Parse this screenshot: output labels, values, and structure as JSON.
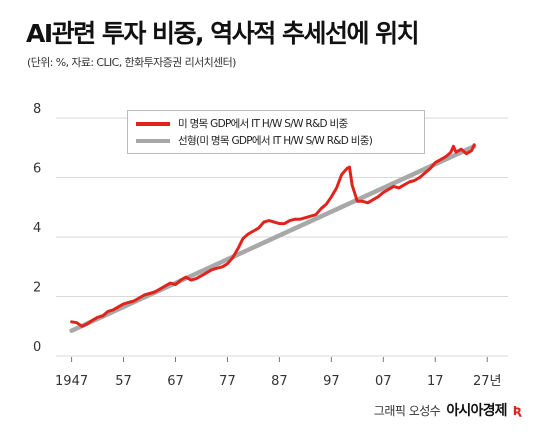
{
  "header": {
    "title": "AI관련 투자 비중, 역사적 추세선에 위치",
    "subtitle": "(단위: %, 자료: CLIC, 한화투자증권 리서치센터)"
  },
  "credit": {
    "text": "그래픽 오성수",
    "logo": "아시아경제",
    "logo_mark": "Ʀ"
  },
  "colors": {
    "actual": "#e0241b",
    "trend": "#a8a8a8",
    "grid": "#d9d9d9"
  },
  "chart_data": {
    "type": "line",
    "title": "AI관련 투자 비중, 역사적 추세선에 위치",
    "ylabel": "",
    "xlabel": "",
    "xlim": [
      1944,
      2031
    ],
    "ylim": [
      0,
      8
    ],
    "y_ticks": [
      {
        "value": 0,
        "label": "0"
      },
      {
        "value": 2,
        "label": "2"
      },
      {
        "value": 4,
        "label": "4"
      },
      {
        "value": 6,
        "label": "6"
      },
      {
        "value": 8,
        "label": "8"
      }
    ],
    "x_ticks": [
      {
        "value": 1947,
        "label": "1947"
      },
      {
        "value": 1957,
        "label": "57"
      },
      {
        "value": 1967,
        "label": "67"
      },
      {
        "value": 1977,
        "label": "77"
      },
      {
        "value": 1987,
        "label": "87"
      },
      {
        "value": 1997,
        "label": "97"
      },
      {
        "value": 2007,
        "label": "07"
      },
      {
        "value": 2017,
        "label": "17"
      },
      {
        "value": 2027,
        "label": "27년"
      }
    ],
    "grid": "horizontal",
    "legend_position": "top",
    "series": [
      {
        "name": "미 명목 GDP에서 IT H/W S/W R&D 비중",
        "color": "#e0241b",
        "x": [
          1947,
          1948,
          1949,
          1950,
          1951,
          1952,
          1953,
          1954,
          1955,
          1956,
          1957,
          1958,
          1959,
          1960,
          1961,
          1962,
          1963,
          1964,
          1965,
          1966,
          1967,
          1968,
          1969,
          1970,
          1971,
          1972,
          1973,
          1974,
          1975,
          1976,
          1977,
          1978,
          1979,
          1980,
          1981,
          1982,
          1983,
          1984,
          1985,
          1986,
          1987,
          1988,
          1989,
          1990,
          1991,
          1992,
          1993,
          1994,
          1995,
          1996,
          1997,
          1998,
          1999,
          2000,
          2000.5,
          2001,
          2002,
          2003,
          2004,
          2005,
          2006,
          2007,
          2008,
          2009,
          2010,
          2011,
          2012,
          2013,
          2014,
          2015,
          2016,
          2017,
          2018,
          2019,
          2020,
          2020.5,
          2021,
          2022,
          2023,
          2024,
          2024.5
        ],
        "y": [
          1.15,
          1.12,
          1.0,
          1.08,
          1.2,
          1.3,
          1.35,
          1.5,
          1.55,
          1.65,
          1.75,
          1.8,
          1.85,
          1.95,
          2.05,
          2.1,
          2.15,
          2.25,
          2.35,
          2.45,
          2.4,
          2.55,
          2.65,
          2.55,
          2.6,
          2.7,
          2.8,
          2.9,
          2.95,
          3.0,
          3.1,
          3.3,
          3.6,
          3.95,
          4.1,
          4.2,
          4.3,
          4.5,
          4.55,
          4.5,
          4.45,
          4.45,
          4.55,
          4.6,
          4.6,
          4.65,
          4.7,
          4.75,
          4.95,
          5.1,
          5.35,
          5.65,
          6.1,
          6.3,
          6.35,
          5.75,
          5.2,
          5.2,
          5.15,
          5.25,
          5.35,
          5.5,
          5.6,
          5.7,
          5.65,
          5.75,
          5.85,
          5.9,
          6.0,
          6.15,
          6.3,
          6.5,
          6.6,
          6.7,
          6.85,
          7.05,
          6.85,
          6.95,
          6.8,
          6.9,
          7.1
        ]
      },
      {
        "name": "선형(미 명목 GDP에서 IT H/W S/W R&D 비중)",
        "color": "#a8a8a8",
        "x": [
          1947,
          2024.5
        ],
        "y": [
          0.85,
          7.05
        ]
      }
    ]
  }
}
